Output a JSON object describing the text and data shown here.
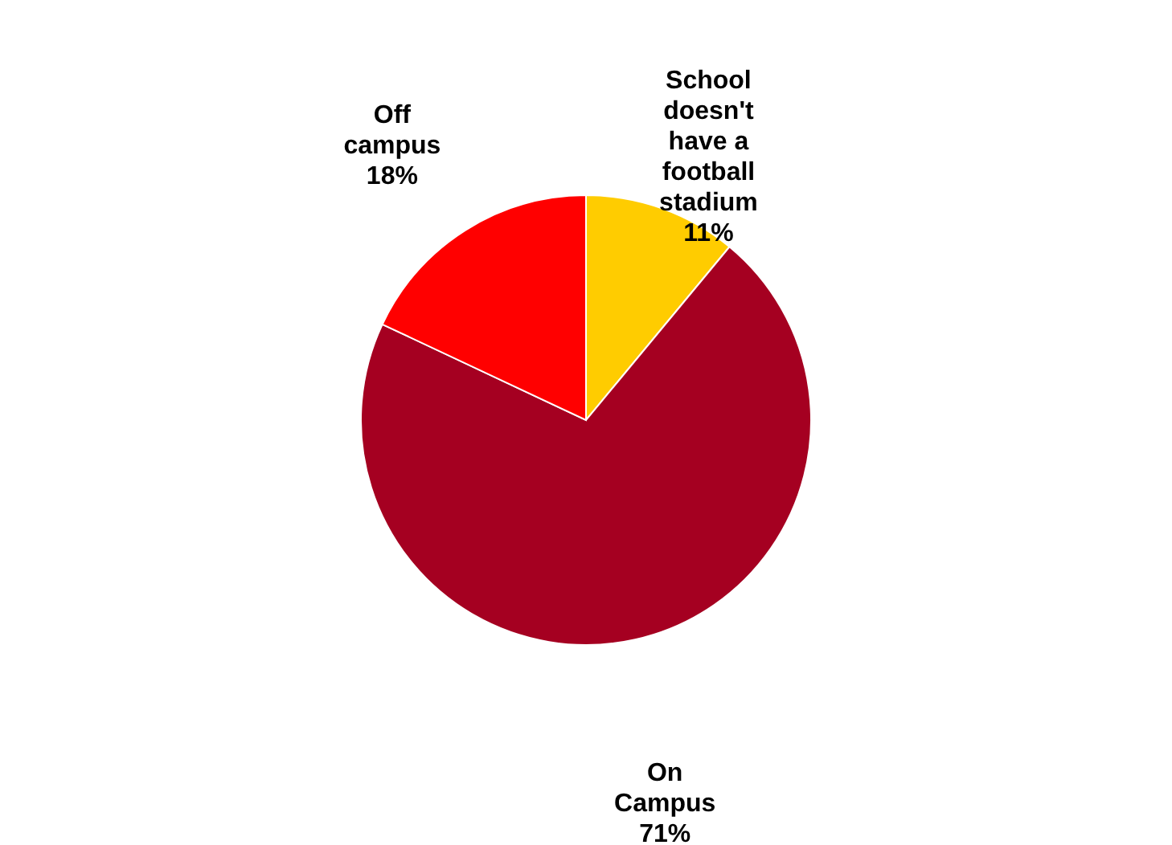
{
  "chart_data": {
    "type": "pie",
    "categories": [
      "School doesn't have a football stadium",
      "On Campus",
      "Off campus"
    ],
    "values": [
      11,
      71,
      18
    ],
    "colors": [
      "#ffcc00",
      "#a50021",
      "#ff0000"
    ],
    "value_labels": [
      "11%",
      "71%",
      "18%"
    ]
  }
}
